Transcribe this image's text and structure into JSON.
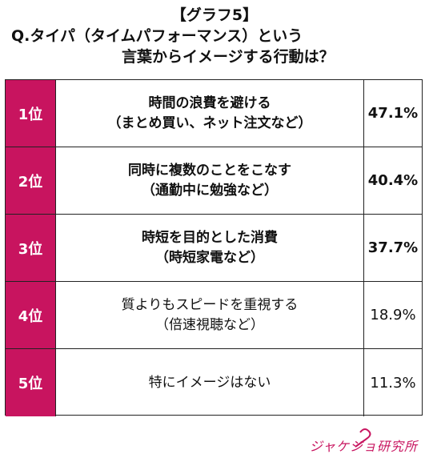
{
  "chart_data": {
    "type": "table",
    "title": "【グラフ5】",
    "question_lines": [
      "Q.タイパ（タイムパフォーマンス）という",
      "言葉からイメージする行動は？"
    ],
    "rows": [
      {
        "rank": "1位",
        "line1": "時間の浪費を避ける",
        "line2": "（まとめ買い、ネット注文など）",
        "value_label": "47.1%",
        "value": 47.1,
        "emphasis": true
      },
      {
        "rank": "2位",
        "line1": "同時に複数のことをこなす",
        "line2": "（通勤中に勉強など）",
        "value_label": "40.4%",
        "value": 40.4,
        "emphasis": true
      },
      {
        "rank": "3位",
        "line1": "時短を目的とした消費",
        "line2": "（時短家電など）",
        "value_label": "37.7%",
        "value": 37.7,
        "emphasis": true
      },
      {
        "rank": "4位",
        "line1": "質よりもスピードを重視する",
        "line2": "（倍速視聴など）",
        "value_label": "18.9%",
        "value": 18.9,
        "emphasis": false
      },
      {
        "rank": "5位",
        "line1": "特にイメージはない",
        "line2": "",
        "value_label": "11.3%",
        "value": 11.3,
        "emphasis": false
      }
    ],
    "colors": {
      "rank_background": "#c8145f",
      "brand": "#c8145f"
    }
  },
  "logo": {
    "text": "ジャケジョ研究所"
  }
}
